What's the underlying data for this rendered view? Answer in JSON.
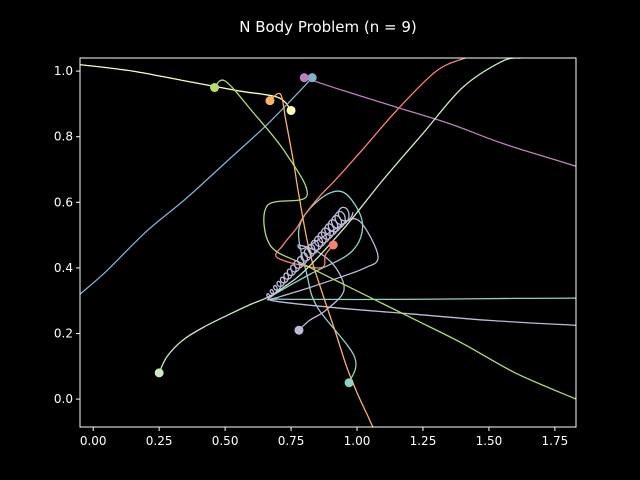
{
  "chart_data": {
    "type": "line",
    "title": "N Body Problem (n = 9)",
    "xlabel": "",
    "ylabel": "",
    "xlim": [
      -0.05,
      1.83
    ],
    "ylim": [
      -0.085,
      1.04
    ],
    "xticks": [
      0.0,
      0.25,
      0.5,
      0.75,
      1.0,
      1.25,
      1.5,
      1.75
    ],
    "yticks": [
      0.0,
      0.2,
      0.4,
      0.6,
      0.8,
      1.0
    ],
    "grid": false,
    "legend": "none",
    "series": [
      {
        "color": "#8dd3c7",
        "x": [
          0.97,
          0.99,
          0.85,
          0.81,
          0.78,
          0.86,
          0.95,
          1.02,
          0.98,
          0.82,
          0.67,
          0.7,
          0.9,
          1.1,
          1.3,
          1.6,
          1.83
        ],
        "y": [
          0.05,
          0.13,
          0.28,
          0.38,
          0.52,
          0.61,
          0.63,
          0.54,
          0.45,
          0.38,
          0.31,
          0.305,
          0.304,
          0.304,
          0.305,
          0.307,
          0.308
        ]
      },
      {
        "color": "#ffffb3",
        "x": [
          -0.05,
          0.15,
          0.35,
          0.55,
          0.7,
          0.75
        ],
        "y": [
          1.02,
          1.0,
          0.97,
          0.94,
          0.92,
          0.88
        ]
      },
      {
        "color": "#bebada",
        "x": [
          0.78,
          0.82,
          0.88,
          0.95,
          0.92,
          0.85,
          0.78,
          0.8,
          0.92,
          0.99,
          1.04,
          1.08,
          1.03,
          0.93,
          0.82,
          0.7,
          0.68,
          0.9,
          1.2,
          1.5,
          1.83
        ],
        "y": [
          0.21,
          0.24,
          0.27,
          0.33,
          0.4,
          0.45,
          0.47,
          0.46,
          0.52,
          0.55,
          0.51,
          0.43,
          0.4,
          0.37,
          0.34,
          0.31,
          0.3,
          0.28,
          0.26,
          0.24,
          0.225
        ]
      },
      {
        "color": "#fb8072",
        "x": [
          0.91,
          0.88,
          0.86,
          0.7,
          0.72,
          0.77,
          0.8,
          0.86,
          0.92,
          1.02,
          1.15,
          1.3,
          1.41
        ],
        "y": [
          0.47,
          0.44,
          0.4,
          0.43,
          0.47,
          0.52,
          0.56,
          0.62,
          0.67,
          0.76,
          0.88,
          1.0,
          1.04
        ]
      },
      {
        "color": "#80b1d3",
        "x": [
          0.83,
          0.76,
          0.65,
          0.5,
          0.35,
          0.2,
          0.05,
          -0.05
        ],
        "y": [
          0.98,
          0.92,
          0.83,
          0.72,
          0.61,
          0.51,
          0.39,
          0.32
        ]
      },
      {
        "color": "#fdb462",
        "x": [
          0.67,
          0.71,
          0.73,
          0.76,
          0.78,
          0.82,
          0.87,
          0.92,
          0.96,
          1.0,
          1.04,
          1.06
        ],
        "y": [
          0.91,
          0.93,
          0.85,
          0.72,
          0.62,
          0.45,
          0.32,
          0.2,
          0.1,
          0.02,
          -0.05,
          -0.085
        ]
      },
      {
        "color": "#b3de69",
        "x": [
          0.46,
          0.5,
          0.6,
          0.73,
          0.81,
          0.66,
          0.67,
          0.8,
          1.0,
          1.2,
          1.4,
          1.6,
          1.83
        ],
        "y": [
          0.95,
          0.97,
          0.88,
          0.75,
          0.62,
          0.59,
          0.47,
          0.41,
          0.33,
          0.25,
          0.17,
          0.08,
          0.0
        ]
      },
      {
        "color": "#bc80bd",
        "x": [
          0.8,
          0.95,
          1.15,
          1.35,
          1.55,
          1.75,
          1.83
        ],
        "y": [
          0.98,
          0.94,
          0.89,
          0.84,
          0.78,
          0.73,
          0.71
        ]
      },
      {
        "color": "#ccebc5",
        "x": [
          0.25,
          0.28,
          0.34,
          0.42,
          0.52,
          0.6,
          0.66,
          0.72,
          0.8,
          0.95,
          1.1,
          1.25,
          1.4,
          1.55,
          1.62
        ],
        "y": [
          0.08,
          0.13,
          0.18,
          0.22,
          0.26,
          0.29,
          0.31,
          0.34,
          0.39,
          0.52,
          0.67,
          0.81,
          0.95,
          1.03,
          1.04
        ]
      }
    ],
    "bodies": [
      {
        "color": "#8dd3c7",
        "x": 0.97,
        "y": 0.05
      },
      {
        "color": "#ffffb3",
        "x": 0.75,
        "y": 0.88
      },
      {
        "color": "#bebada",
        "x": 0.78,
        "y": 0.21
      },
      {
        "color": "#fb8072",
        "x": 0.91,
        "y": 0.47
      },
      {
        "color": "#80b1d3",
        "x": 0.83,
        "y": 0.98
      },
      {
        "color": "#fdb462",
        "x": 0.67,
        "y": 0.91
      },
      {
        "color": "#b3de69",
        "x": 0.46,
        "y": 0.95
      },
      {
        "color": "#bc80bd",
        "x": 0.8,
        "y": 0.98
      },
      {
        "color": "#ccebc5",
        "x": 0.25,
        "y": 0.08
      }
    ]
  }
}
